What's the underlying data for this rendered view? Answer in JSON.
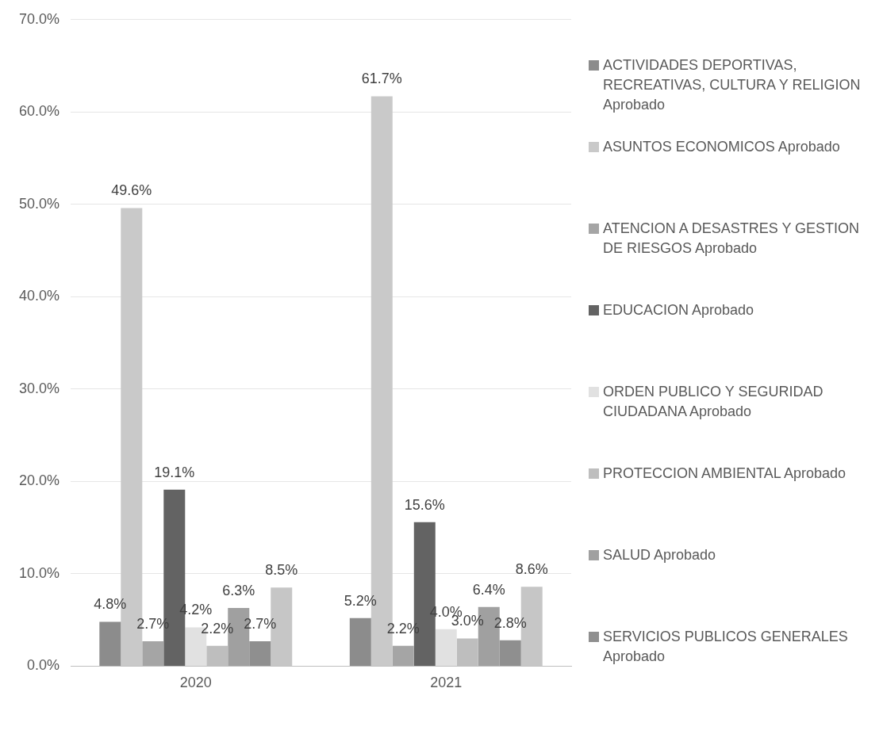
{
  "chart_data": {
    "type": "bar",
    "categories": [
      "2020",
      "2021"
    ],
    "series": [
      {
        "name": "ACTIVIDADES DEPORTIVAS, RECREATIVAS, CULTURA Y RELIGION Aprobado",
        "color": "#8c8c8c",
        "values": [
          4.8,
          5.2
        ],
        "value_labels": [
          "4.8%",
          "5.2%"
        ]
      },
      {
        "name": "ASUNTOS ECONOMICOS Aprobado",
        "color": "#c9c9c9",
        "values": [
          49.6,
          61.7
        ],
        "value_labels": [
          "49.6%",
          "61.7%"
        ]
      },
      {
        "name": "ATENCION A DESASTRES Y GESTION DE RIESGOS Aprobado",
        "color": "#a5a5a5",
        "values": [
          2.7,
          2.2
        ],
        "value_labels": [
          "2.7%",
          "2.2%"
        ]
      },
      {
        "name": "EDUCACION Aprobado",
        "color": "#636363",
        "values": [
          19.1,
          15.6
        ],
        "value_labels": [
          "19.1%",
          "15.6%"
        ]
      },
      {
        "name": "ORDEN PUBLICO Y SEGURIDAD CIUDADANA Aprobado",
        "color": "#e1e1e1",
        "values": [
          4.2,
          4.0
        ],
        "value_labels": [
          "4.2%",
          "4.0%"
        ]
      },
      {
        "name": "PROTECCION AMBIENTAL Aprobado",
        "color": "#bebebe",
        "values": [
          2.2,
          3.0
        ],
        "value_labels": [
          "2.2%",
          "3.0%"
        ]
      },
      {
        "name": "SALUD Aprobado",
        "color": "#a0a0a0",
        "values": [
          6.3,
          6.4
        ],
        "value_labels": [
          "6.3%",
          "6.4%"
        ]
      },
      {
        "name": "SERVICIOS PUBLICOS GENERALES Aprobado",
        "color": "#8f8f8f",
        "values": [
          2.7,
          2.8
        ],
        "value_labels": [
          "2.7%",
          "2.8%"
        ]
      },
      {
        "color": "#c6c6c6",
        "values": [
          8.5,
          8.6
        ],
        "value_labels": [
          "8.5%",
          "8.6%"
        ]
      }
    ],
    "ylim": [
      0,
      70
    ],
    "yticks": [
      {
        "value": 0,
        "label": "0.0%"
      },
      {
        "value": 10,
        "label": "10.0%"
      },
      {
        "value": 20,
        "label": "20.0%"
      },
      {
        "value": 30,
        "label": "30.0%"
      },
      {
        "value": 40,
        "label": "40.0%"
      },
      {
        "value": 50,
        "label": "50.0%"
      },
      {
        "value": 60,
        "label": "60.0%"
      },
      {
        "value": 70,
        "label": "70.0%"
      }
    ],
    "grid": "y",
    "legend": "right"
  }
}
